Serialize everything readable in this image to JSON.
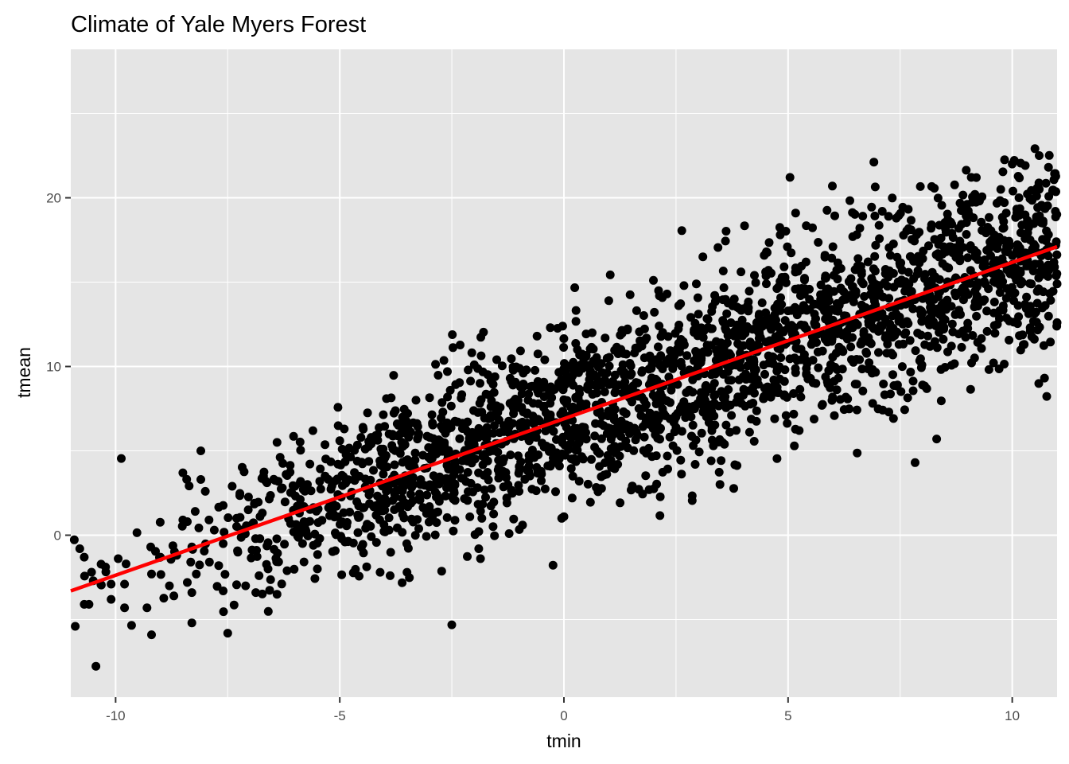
{
  "chart_data": {
    "type": "scatter",
    "title": "Climate of Yale Myers Forest",
    "xlabel": "tmin",
    "ylabel": "tmean",
    "xlim": [
      -11,
      11
    ],
    "ylim": [
      -9.6,
      28.8
    ],
    "x_ticks": [
      -10,
      -5,
      0,
      5,
      10
    ],
    "y_ticks": [
      0,
      10,
      20
    ],
    "x_tick_labels": [
      "-10",
      "-5",
      "0",
      "5",
      "10"
    ],
    "y_tick_labels": [
      "0",
      "10",
      "20"
    ],
    "grid": true,
    "legend": "none",
    "point_count": 2400,
    "point_color": "#000000",
    "panel_background": "#e5e5e5",
    "grid_color": "#ffffff",
    "trend_line": {
      "method": "linear regression",
      "color": "#ff0000",
      "points": [
        [
          -11,
          -3.3
        ],
        [
          11,
          17.1
        ]
      ]
    },
    "points_sample": [
      [
        -10.9,
        -5.4
      ],
      [
        -10.8,
        -0.8
      ],
      [
        -10.7,
        -1.3
      ],
      [
        -10.7,
        -4.1
      ],
      [
        -10.5,
        -2.7
      ],
      [
        -10.1,
        -2.9
      ],
      [
        -10.1,
        -3.8
      ],
      [
        -9.8,
        -2.9
      ],
      [
        -9.8,
        -4.3
      ],
      [
        -9.3,
        -4.3
      ],
      [
        -9.2,
        -5.9
      ],
      [
        -9.2,
        -2.3
      ],
      [
        -9.0,
        -1.3
      ],
      [
        -8.8,
        -3.0
      ],
      [
        -8.7,
        -3.6
      ],
      [
        -8.5,
        3.7
      ],
      [
        -8.5,
        0.9
      ],
      [
        -8.4,
        0.8
      ],
      [
        -8.4,
        -2.8
      ],
      [
        -8.3,
        -3.4
      ],
      [
        -8.3,
        -0.7
      ],
      [
        -8.3,
        -5.2
      ],
      [
        -8.2,
        -2.3
      ],
      [
        -8.1,
        5.0
      ],
      [
        -8.1,
        3.3
      ],
      [
        -8.0,
        2.6
      ],
      [
        -7.8,
        0.3
      ],
      [
        -7.7,
        -1.8
      ],
      [
        -7.6,
        -3.3
      ],
      [
        -7.6,
        -0.5
      ],
      [
        -7.4,
        2.9
      ],
      [
        -7.3,
        1.0
      ],
      [
        -7.1,
        -3.0
      ],
      [
        -6.9,
        1.9
      ],
      [
        -6.8,
        -2.4
      ],
      [
        -6.6,
        -2.0
      ],
      [
        -6.4,
        5.5
      ],
      [
        -6.4,
        -3.5
      ],
      [
        -6.0,
        2.9
      ],
      [
        -5.8,
        0.5
      ],
      [
        -5.6,
        6.2
      ],
      [
        -5.5,
        -2.0
      ],
      [
        -5.0,
        5.6
      ],
      [
        -4.9,
        6.3
      ],
      [
        -4.6,
        1.2
      ],
      [
        -4.3,
        5.8
      ],
      [
        -4.1,
        -2.2
      ],
      [
        -3.9,
        6.0
      ],
      [
        -3.9,
        0.3
      ],
      [
        -3.6,
        7.0
      ],
      [
        -3.5,
        -2.2
      ],
      [
        -3.3,
        8.0
      ],
      [
        -3.2,
        3.0
      ],
      [
        -3.0,
        1.7
      ],
      [
        -2.9,
        5.1
      ],
      [
        -2.7,
        7.3
      ],
      [
        -2.6,
        9.7
      ],
      [
        -2.5,
        3.4
      ],
      [
        -2.2,
        6.3
      ],
      [
        -2.0,
        10.1
      ],
      [
        -1.9,
        -0.8
      ],
      [
        -1.7,
        4.4
      ],
      [
        -1.5,
        10.4
      ],
      [
        -1.2,
        9.3
      ],
      [
        -1.0,
        2.6
      ],
      [
        -0.8,
        8.0
      ],
      [
        -0.6,
        11.8
      ],
      [
        -0.4,
        6.3
      ],
      [
        -0.1,
        4.1
      ],
      [
        0.0,
        1.1
      ],
      [
        0.2,
        7.6
      ],
      [
        0.3,
        11.0
      ],
      [
        0.5,
        5.7
      ],
      [
        0.8,
        9.1
      ],
      [
        1.0,
        13.9
      ],
      [
        1.2,
        4.2
      ],
      [
        1.4,
        8.7
      ],
      [
        1.6,
        11.1
      ],
      [
        1.9,
        2.7
      ],
      [
        2.1,
        10.4
      ],
      [
        2.3,
        14.3
      ],
      [
        2.5,
        7.0
      ],
      [
        2.8,
        9.8
      ],
      [
        3.0,
        13.1
      ],
      [
        3.1,
        16.5
      ],
      [
        3.3,
        6.2
      ],
      [
        3.5,
        11.4
      ],
      [
        3.6,
        10.2
      ],
      [
        3.8,
        14.0
      ],
      [
        4.0,
        8.3
      ],
      [
        4.3,
        12.6
      ],
      [
        4.5,
        15.6
      ],
      [
        4.7,
        6.9
      ],
      [
        5.0,
        13.3
      ],
      [
        5.1,
        11.6
      ],
      [
        5.4,
        16.2
      ],
      [
        5.5,
        9.3
      ],
      [
        5.8,
        13.8
      ],
      [
        6.0,
        17.1
      ],
      [
        6.2,
        11.0
      ],
      [
        6.5,
        14.4
      ],
      [
        6.6,
        18.2
      ],
      [
        6.8,
        12.5
      ],
      [
        7.1,
        19.2
      ],
      [
        7.3,
        10.8
      ],
      [
        7.5,
        16.0
      ],
      [
        7.8,
        15.2
      ],
      [
        8.0,
        8.9
      ],
      [
        8.2,
        18.4
      ],
      [
        8.4,
        13.5
      ],
      [
        8.6,
        17.1
      ],
      [
        8.9,
        12.1
      ],
      [
        9.0,
        15.0
      ],
      [
        9.2,
        21.2
      ],
      [
        9.4,
        14.9
      ],
      [
        9.6,
        17.8
      ],
      [
        9.8,
        13.6
      ],
      [
        10.0,
        22.0
      ],
      [
        10.2,
        16.4
      ],
      [
        10.4,
        12.3
      ],
      [
        10.6,
        22.5
      ],
      [
        10.8,
        16.0
      ],
      [
        10.9,
        20.4
      ],
      [
        11.0,
        14.9
      ],
      [
        11.0,
        12.6
      ]
    ]
  }
}
